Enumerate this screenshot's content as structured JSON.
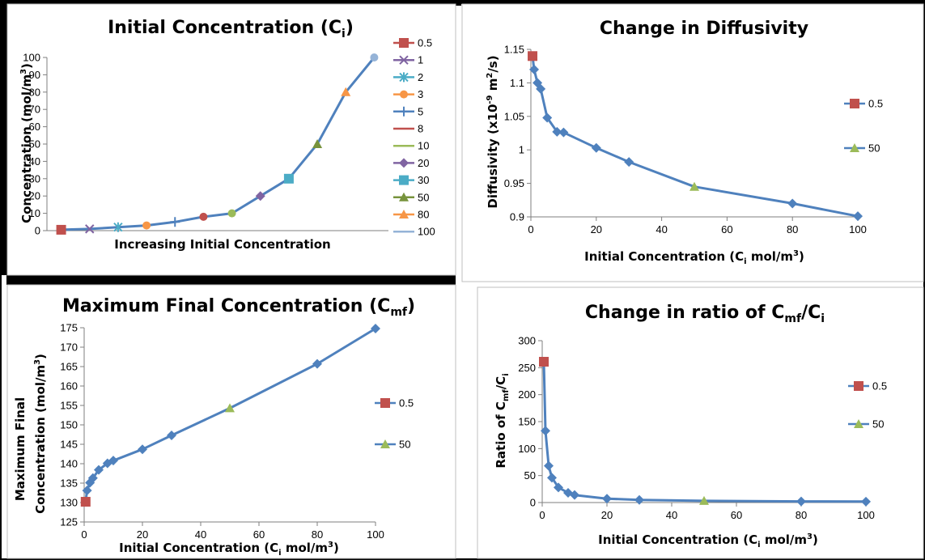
{
  "colors": {
    "series_line": "#4f81bd",
    "marker_05": "#c0504d",
    "marker_50": "#9bbb59",
    "frame": "#000000",
    "panel_border": "#bfbfbf"
  },
  "chart_data": [
    {
      "id": "initial",
      "type": "line",
      "title": "Initial Concentration (C",
      "title_sub": "i",
      "title_end": ")",
      "xlabel": "Increasing Initial Concentration",
      "ylabel": "Concentration (mol/m",
      "ylabel_sup": "3",
      "ylabel_end": ")",
      "ylim": [
        0,
        100
      ],
      "yticks": [
        "0",
        "10",
        "20",
        "30",
        "40",
        "50",
        "60",
        "70",
        "80",
        "90",
        "100"
      ],
      "x": [
        1,
        2,
        3,
        4,
        5,
        6,
        7,
        8,
        9,
        10,
        11,
        12
      ],
      "values": [
        0.5,
        1,
        2,
        3,
        5,
        8,
        10,
        20,
        30,
        50,
        80,
        100
      ],
      "legend_position": "right",
      "legend": [
        {
          "name": "0.5",
          "color": "#c0504d",
          "marker": "square"
        },
        {
          "name": "1",
          "color": "#8064a2",
          "marker": "x"
        },
        {
          "name": "2",
          "color": "#4bacc6",
          "marker": "star"
        },
        {
          "name": "3",
          "color": "#f79646",
          "marker": "circle"
        },
        {
          "name": "5",
          "color": "#4f81bd",
          "marker": "plus"
        },
        {
          "name": "8",
          "color": "#c0504d",
          "marker": "dash"
        },
        {
          "name": "10",
          "color": "#9bbb59",
          "marker": "dash"
        },
        {
          "name": "20",
          "color": "#8064a2",
          "marker": "diamond"
        },
        {
          "name": "30",
          "color": "#4bacc6",
          "marker": "square"
        },
        {
          "name": "50",
          "color": "#77933c",
          "marker": "triangle"
        },
        {
          "name": "80",
          "color": "#f79646",
          "marker": "triangle"
        },
        {
          "name": "100",
          "color": "#95b3d7",
          "marker": "dash"
        }
      ]
    },
    {
      "id": "diffusivity",
      "type": "line",
      "title": "Change in Diffusivity",
      "xlabel": "Initial Concentration (C",
      "xlabel_sub": "i",
      "xlabel_end": " mol/m",
      "xlabel_sup": "3",
      "xlabel_close": ")",
      "ylabel": "Diffusivity (x10",
      "ylabel_sup": "-9",
      "ylabel_mid": " m",
      "ylabel_sup2": "2",
      "ylabel_end": "/s)",
      "xlim": [
        0,
        100
      ],
      "xticks": [
        "0",
        "20",
        "40",
        "60",
        "80",
        "100"
      ],
      "ylim": [
        0.9,
        1.15
      ],
      "yticks": [
        "0.9",
        "0.95",
        "1",
        "1.05",
        "1.1",
        "1.15"
      ],
      "x": [
        0.5,
        1,
        2,
        3,
        5,
        8,
        10,
        20,
        30,
        50,
        80,
        100
      ],
      "values": [
        1.14,
        1.12,
        1.1,
        1.091,
        1.048,
        1.027,
        1.026,
        1.003,
        0.982,
        0.945,
        0.92,
        0.901
      ],
      "highlight": [
        {
          "name": "0.5",
          "x": 0.5,
          "y": 1.14,
          "color": "#c0504d"
        },
        {
          "name": "50",
          "x": 50,
          "y": 0.945,
          "color": "#9bbb59"
        }
      ],
      "legend_position": "right"
    },
    {
      "id": "maxfinal",
      "type": "line",
      "title": "Maximum Final Concentration (C",
      "title_sub": "mf",
      "title_end": ")",
      "xlabel": "Initial Concentration (C",
      "xlabel_sub": "i",
      "xlabel_end": " mol/m",
      "xlabel_sup": "3",
      "xlabel_close": ")",
      "ylabel_line1": "Maximum Final",
      "ylabel": "Concentration (mol/m",
      "ylabel_sup": "3",
      "ylabel_end": ")",
      "xlim": [
        0,
        100
      ],
      "xticks": [
        "0",
        "20",
        "40",
        "60",
        "80",
        "100"
      ],
      "ylim": [
        125,
        175
      ],
      "yticks": [
        "125",
        "130",
        "135",
        "140",
        "145",
        "150",
        "155",
        "160",
        "165",
        "170",
        "175"
      ],
      "x": [
        0.5,
        1,
        2,
        3,
        5,
        8,
        10,
        20,
        30,
        50,
        80,
        100
      ],
      "values": [
        130.2,
        133.1,
        135.1,
        136.3,
        138.4,
        140.1,
        140.8,
        143.7,
        147.3,
        154.3,
        165.7,
        174.8
      ],
      "highlight": [
        {
          "name": "0.5",
          "x": 0.5,
          "y": 130.2,
          "color": "#c0504d"
        },
        {
          "name": "50",
          "x": 50,
          "y": 154.3,
          "color": "#9bbb59"
        }
      ],
      "legend_position": "right"
    },
    {
      "id": "ratio",
      "type": "line",
      "title": "Change in ratio of C",
      "title_sub": "mf",
      "title_mid": "/C",
      "title_sub2": "i",
      "xlabel": "Initial Concentration (C",
      "xlabel_sub": "i",
      "xlabel_end": " mol/m",
      "xlabel_sup": "3",
      "xlabel_close": ")",
      "ylabel": "Ratio of C",
      "ylabel_sub": "mf",
      "ylabel_mid": "/C",
      "ylabel_sub2": "i",
      "xlim": [
        0,
        100
      ],
      "xticks": [
        "0",
        "20",
        "40",
        "60",
        "80",
        "100"
      ],
      "ylim": [
        0,
        300
      ],
      "yticks": [
        "0",
        "50",
        "100",
        "150",
        "200",
        "250",
        "300"
      ],
      "x": [
        0.5,
        1,
        2,
        3,
        5,
        8,
        10,
        20,
        30,
        50,
        80,
        100
      ],
      "values": [
        261,
        133,
        68,
        46,
        28,
        18,
        14,
        7.2,
        4.9,
        3.1,
        2.1,
        1.75
      ],
      "highlight": [
        {
          "name": "0.5",
          "x": 0.5,
          "y": 261,
          "color": "#c0504d"
        },
        {
          "name": "50",
          "x": 50,
          "y": 3.1,
          "color": "#9bbb59"
        }
      ],
      "legend_position": "right"
    }
  ]
}
